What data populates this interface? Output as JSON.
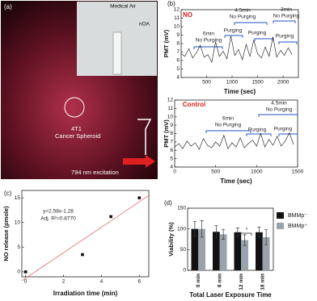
{
  "photo": {
    "panel_label": "(a)",
    "labels": [
      "Medical Air",
      "nOA",
      "4T1",
      "Cancer Spheroid",
      "794 nm excitation"
    ]
  },
  "chart_data": [
    {
      "type": "line",
      "panel_label": "(b)",
      "xlabel": "Time (sec)",
      "ylabel": "PMT (mV)",
      "color": "#111111",
      "annotations": [
        "NO",
        "6min",
        "No Purging",
        "Purging",
        "4.5min",
        "No Purging",
        "Purging",
        "3min",
        "No Purging",
        "Purging"
      ],
      "x": [
        0,
        75,
        150,
        225,
        300,
        375,
        450,
        525,
        600,
        675,
        750,
        825,
        900,
        975,
        1050,
        1125,
        1200,
        1275,
        1350,
        1425,
        1500,
        1575,
        1650,
        1725,
        1800,
        1875,
        1950,
        2025,
        2100,
        2175
      ],
      "values": [
        6.8,
        6.5,
        7.4,
        6.3,
        6.9,
        7.8,
        6.4,
        6.7,
        5.8,
        8.2,
        6.5,
        7.1,
        6.2,
        8.9,
        6.6,
        7.3,
        6.1,
        7.9,
        6.5,
        8.4,
        6.8,
        6.3,
        7.6,
        6.5,
        8.8,
        6.4,
        7.2,
        6.6,
        7.5,
        6.7
      ],
      "xlim": [
        0,
        2300
      ],
      "xticks": [
        500,
        1000,
        1500,
        2000
      ],
      "ylim": [
        4,
        12
      ],
      "yticks": [
        4,
        5,
        6,
        7,
        8,
        9,
        10,
        11,
        12
      ]
    },
    {
      "type": "line",
      "xlabel": "Time (sec)",
      "ylabel": "PMT (mV)",
      "color": "#111111",
      "annotations": [
        "Control",
        "6min",
        "No Purging",
        "Purging",
        "4.5min",
        "No Purging",
        "Purging"
      ],
      "x": [
        0,
        50,
        100,
        150,
        200,
        250,
        300,
        350,
        400,
        450,
        500,
        550,
        600,
        650,
        700,
        750,
        800,
        850,
        900,
        950,
        1000,
        1050,
        1100,
        1150,
        1200,
        1250,
        1300,
        1350,
        1400,
        1450
      ],
      "values": [
        6.4,
        6.8,
        6.2,
        7.1,
        6.5,
        6.9,
        6.1,
        7.4,
        6.6,
        6.3,
        7.0,
        6.5,
        7.8,
        6.2,
        6.9,
        6.4,
        7.5,
        6.3,
        6.8,
        7.2,
        6.5,
        8.0,
        6.4,
        7.3,
        6.6,
        7.7,
        6.5,
        7.1,
        8.1,
        6.7
      ],
      "xlim": [
        0,
        1500
      ],
      "xticks": [
        0,
        500,
        1000,
        1500
      ],
      "ylim": [
        4,
        12
      ],
      "yticks": [
        4,
        5,
        6,
        7,
        8,
        9,
        10,
        11,
        12
      ]
    },
    {
      "type": "scatter",
      "panel_label": "(c)",
      "xlabel": "Irradiation time (min)",
      "ylabel": "NO release (pmole)",
      "color": "#111111",
      "annotations": [
        "y=2.58x-1.28",
        "Adj. R²=0.8770"
      ],
      "x": [
        0,
        3,
        4.5,
        6
      ],
      "values": [
        0,
        3.5,
        11.2,
        15
      ],
      "fit": {
        "slope": 2.58,
        "intercept": -1.28,
        "color": "#e07070"
      },
      "xlim": [
        -0.2,
        6.5
      ],
      "xticks": [
        0,
        2,
        4,
        6
      ],
      "ylim": [
        -1,
        16.5
      ],
      "yticks": [
        0,
        5,
        10,
        15
      ]
    },
    {
      "type": "bar",
      "panel_label": "(d)",
      "xlabel": "Total Laser Exposure Time",
      "ylabel": "Viability (%)",
      "annotations": [
        "*"
      ],
      "categories": [
        "0 min",
        "6 min",
        "12 min",
        "18 min"
      ],
      "series": [
        {
          "name": "BMMp⁻",
          "color": "#111111",
          "values": [
            100,
            93,
            92,
            92
          ],
          "errors": [
            18,
            15,
            10,
            12
          ]
        },
        {
          "name": "BMMp⁺",
          "color": "#9aa3ab",
          "values": [
            100,
            87,
            73,
            80
          ],
          "errors": [
            20,
            12,
            13,
            18
          ]
        }
      ],
      "ylim": [
        0,
        150
      ],
      "yticks": [
        0,
        50,
        100,
        150
      ],
      "legend": "upper right"
    }
  ]
}
